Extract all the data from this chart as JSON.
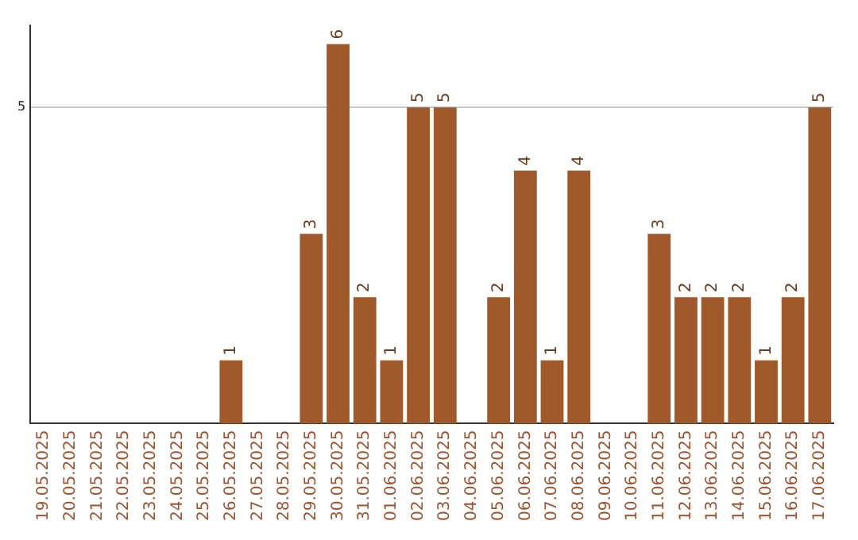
{
  "chart_data": {
    "type": "bar",
    "categories": [
      "19.05.2025",
      "20.05.2025",
      "21.05.2025",
      "22.05.2025",
      "23.05.2025",
      "24.05.2025",
      "25.05.2025",
      "26.05.2025",
      "27.05.2025",
      "28.05.2025",
      "29.05.2025",
      "30.05.2025",
      "31.05.2025",
      "01.06.2025",
      "02.06.2025",
      "03.06.2025",
      "04.06.2025",
      "05.06.2025",
      "06.06.2025",
      "07.06.2025",
      "08.06.2025",
      "09.06.2025",
      "10.06.2025",
      "11.06.2025",
      "12.06.2025",
      "13.06.2025",
      "14.06.2025",
      "15.06.2025",
      "16.06.2025",
      "17.06.2025"
    ],
    "values": [
      0,
      0,
      0,
      0,
      0,
      0,
      0,
      1,
      0,
      0,
      3,
      6,
      2,
      1,
      5,
      5,
      0,
      2,
      4,
      1,
      4,
      0,
      0,
      3,
      2,
      2,
      2,
      1,
      2,
      5
    ],
    "value_labels": [
      null,
      null,
      null,
      null,
      null,
      null,
      null,
      "1",
      null,
      null,
      "3",
      "6",
      "2",
      "1",
      "5",
      "5",
      null,
      "2",
      "4",
      "1",
      "4",
      null,
      null,
      "3",
      "2",
      "2",
      "2",
      "1",
      "2",
      "5"
    ],
    "color": "#a0592a",
    "ylim": [
      0,
      6.3
    ],
    "yticks": [
      5
    ],
    "grid": "y"
  }
}
